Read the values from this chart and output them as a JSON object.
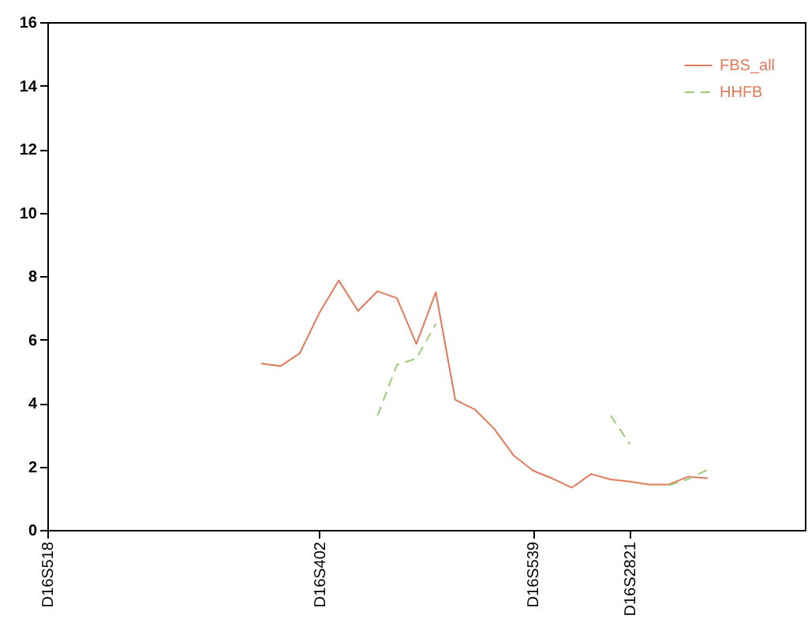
{
  "chart_data": {
    "type": "line",
    "categories": [
      "D16S518",
      null,
      null,
      null,
      null,
      null,
      null,
      null,
      null,
      null,
      null,
      null,
      null,
      null,
      "D16S402",
      null,
      null,
      null,
      null,
      null,
      null,
      null,
      null,
      null,
      null,
      "D16S539",
      null,
      null,
      null,
      null,
      "D16S2821",
      null,
      null,
      null,
      null,
      null,
      null,
      null,
      null,
      null
    ],
    "ylim": [
      0,
      16
    ],
    "yticks": [
      0,
      2,
      4,
      6,
      8,
      10,
      12,
      14,
      16
    ],
    "legend": "top right",
    "series": [
      {
        "name": "FBS_all",
        "color": "#e07a5a",
        "line_style": "solid",
        "values": [
          null,
          null,
          null,
          null,
          null,
          null,
          null,
          null,
          null,
          null,
          null,
          5.24,
          5.16,
          5.57,
          6.83,
          7.86,
          6.9,
          7.52,
          7.3,
          5.86,
          7.49,
          4.1,
          3.8,
          3.19,
          2.35,
          1.87,
          1.62,
          1.33,
          1.76,
          1.59,
          1.52,
          1.43,
          1.43,
          1.68,
          1.63,
          null,
          null,
          null,
          null,
          null
        ]
      },
      {
        "name": "HHFB",
        "color": "#9ccc7a",
        "line_style": "dashed",
        "values": [
          null,
          null,
          null,
          null,
          null,
          null,
          null,
          null,
          null,
          null,
          null,
          null,
          null,
          null,
          null,
          null,
          null,
          3.6,
          5.2,
          5.4,
          6.5,
          null,
          null,
          null,
          null,
          null,
          null,
          null,
          null,
          3.6,
          2.7,
          null,
          1.4,
          1.6,
          1.9,
          null,
          null,
          null,
          null,
          null
        ]
      }
    ]
  }
}
